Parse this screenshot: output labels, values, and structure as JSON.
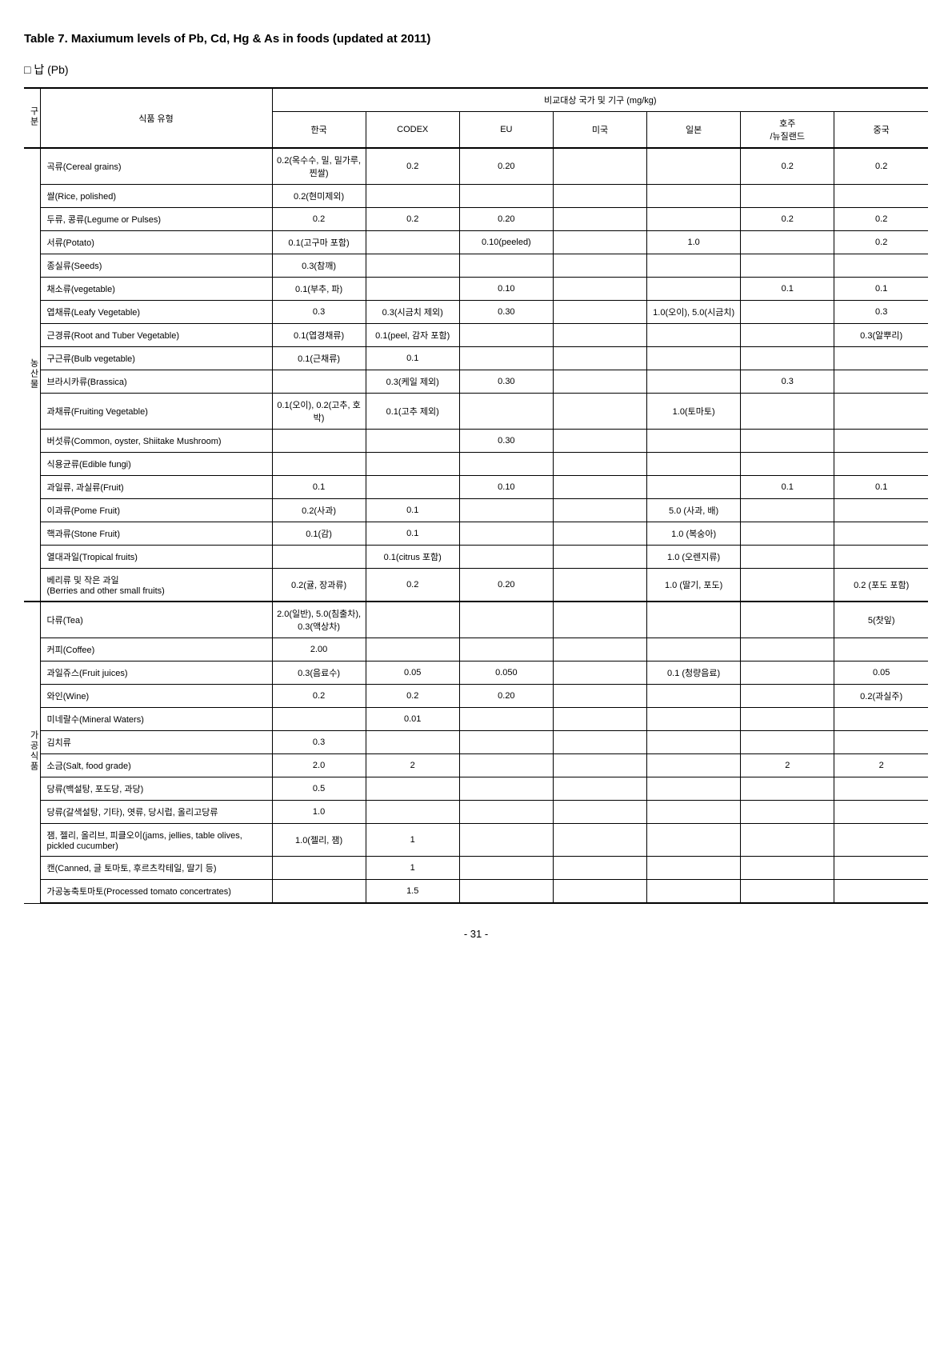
{
  "page": {
    "title": "Table 7. Maxiumum levels of Pb, Cd, Hg & As in foods (updated at 2011)",
    "subtitle": "□ 납 (Pb)",
    "pagenum": "- 31 -"
  },
  "header": {
    "category": "구분",
    "foodType": "식품 유형",
    "compare": "비교대상 국가 및 기구 (mg/kg)",
    "korea": "한국",
    "codex": "CODEX",
    "eu": "EU",
    "usa": "미국",
    "japan": "일본",
    "ausnz": "호주\n/뉴질랜드",
    "china": "중국"
  },
  "cats": {
    "plant": "농산물",
    "processed": "가공식품"
  },
  "rows": [
    {
      "cat": "plant",
      "label": "곡류(Cereal grains)",
      "kr": "0.2(옥수수, 밀, 밀가루, 찐쌀)",
      "codex": "0.2",
      "eu": "0.20",
      "us": "",
      "jp": "",
      "au": "0.2",
      "cn": "0.2"
    },
    {
      "cat": "plant",
      "label": "쌀(Rice, polished)",
      "kr": "0.2(현미제외)",
      "codex": "",
      "eu": "",
      "us": "",
      "jp": "",
      "au": "",
      "cn": ""
    },
    {
      "cat": "plant",
      "label": "두류, 콩류(Legume or Pulses)",
      "kr": "0.2",
      "codex": "0.2",
      "eu": "0.20",
      "us": "",
      "jp": "",
      "au": "0.2",
      "cn": "0.2"
    },
    {
      "cat": "plant",
      "label": "서류(Potato)",
      "kr": "0.1(고구마 포함)",
      "codex": "",
      "eu": "0.10(peeled)",
      "us": "",
      "jp": "1.0",
      "au": "",
      "cn": "0.2"
    },
    {
      "cat": "plant",
      "label": "종실류(Seeds)",
      "kr": "0.3(참깨)",
      "codex": "",
      "eu": "",
      "us": "",
      "jp": "",
      "au": "",
      "cn": ""
    },
    {
      "cat": "plant",
      "label": "채소류(vegetable)",
      "kr": "0.1(부추, 파)",
      "codex": "",
      "eu": "0.10",
      "us": "",
      "jp": "",
      "au": "0.1",
      "cn": "0.1"
    },
    {
      "cat": "plant",
      "label": "엽채류(Leafy Vegetable)",
      "kr": "0.3",
      "codex": "0.3(시금치 제외)",
      "eu": "0.30",
      "us": "",
      "jp": "1.0(오이), 5.0(시금치)",
      "au": "",
      "cn": "0.3"
    },
    {
      "cat": "plant",
      "label": "근경류(Root and Tuber Vegetable)",
      "kr": "0.1(엽경채류)",
      "codex": "0.1(peel, 감자 포함)",
      "eu": "",
      "us": "",
      "jp": "",
      "au": "",
      "cn": "0.3(알뿌리)"
    },
    {
      "cat": "plant",
      "label": "구근류(Bulb vegetable)",
      "kr": "0.1(근채류)",
      "codex": "0.1",
      "eu": "",
      "us": "",
      "jp": "",
      "au": "",
      "cn": ""
    },
    {
      "cat": "plant",
      "label": "브라시카류(Brassica)",
      "kr": "",
      "codex": "0.3(케일 제외)",
      "eu": "0.30",
      "us": "",
      "jp": "",
      "au": "0.3",
      "cn": ""
    },
    {
      "cat": "plant",
      "label": "과채류(Fruiting Vegetable)",
      "kr": "0.1(오이), 0.2(고추, 호박)",
      "codex": "0.1(고추 제외)",
      "eu": "",
      "us": "",
      "jp": "1.0(토마토)",
      "au": "",
      "cn": ""
    },
    {
      "cat": "plant",
      "label": "버섯류(Common, oyster, Shiitake Mushroom)",
      "kr": "",
      "codex": "",
      "eu": "0.30",
      "us": "",
      "jp": "",
      "au": "",
      "cn": ""
    },
    {
      "cat": "plant",
      "label": "식용균류(Edible fungi)",
      "kr": "",
      "codex": "",
      "eu": "",
      "us": "",
      "jp": "",
      "au": "",
      "cn": ""
    },
    {
      "cat": "plant",
      "label": "과일류, 과실류(Fruit)",
      "kr": "0.1",
      "codex": "",
      "eu": "0.10",
      "us": "",
      "jp": "",
      "au": "0.1",
      "cn": "0.1"
    },
    {
      "cat": "plant",
      "label": "이과류(Pome Fruit)",
      "kr": "0.2(사과)",
      "codex": "0.1",
      "eu": "",
      "us": "",
      "jp": "5.0 (사과, 배)",
      "au": "",
      "cn": ""
    },
    {
      "cat": "plant",
      "label": "핵과류(Stone Fruit)",
      "kr": "0.1(감)",
      "codex": "0.1",
      "eu": "",
      "us": "",
      "jp": "1.0 (복숭아)",
      "au": "",
      "cn": ""
    },
    {
      "cat": "plant",
      "label": "열대과일(Tropical fruits)",
      "kr": "",
      "codex": "0.1(citrus 포함)",
      "eu": "",
      "us": "",
      "jp": "1.0 (오렌지류)",
      "au": "",
      "cn": ""
    },
    {
      "cat": "plant",
      "label": "베리류 및 작은 과일\n(Berries and other small fruits)",
      "kr": "0.2(귤, 장과류)",
      "codex": "0.2",
      "eu": "0.20",
      "us": "",
      "jp": "1.0 (딸기, 포도)",
      "au": "",
      "cn": "0.2 (포도 포함)"
    },
    {
      "cat": "processed",
      "label": "다류(Tea)",
      "kr": "2.0(일반), 5.0(침출차), 0.3(액상차)",
      "codex": "",
      "eu": "",
      "us": "",
      "jp": "",
      "au": "",
      "cn": "5(찻잎)"
    },
    {
      "cat": "processed",
      "label": "커피(Coffee)",
      "kr": "2.00",
      "codex": "",
      "eu": "",
      "us": "",
      "jp": "",
      "au": "",
      "cn": ""
    },
    {
      "cat": "processed",
      "label": "과일쥬스(Fruit juices)",
      "kr": "0.3(음료수)",
      "codex": "0.05",
      "eu": "0.050",
      "us": "",
      "jp": "0.1 (청량음료)",
      "au": "",
      "cn": "0.05"
    },
    {
      "cat": "processed",
      "label": "와인(Wine)",
      "kr": "0.2",
      "codex": "0.2",
      "eu": "0.20",
      "us": "",
      "jp": "",
      "au": "",
      "cn": "0.2(과실주)"
    },
    {
      "cat": "processed",
      "label": "미네랄수(Mineral Waters)",
      "kr": "",
      "codex": "0.01",
      "eu": "",
      "us": "",
      "jp": "",
      "au": "",
      "cn": ""
    },
    {
      "cat": "processed",
      "label": "김치류",
      "kr": "0.3",
      "codex": "",
      "eu": "",
      "us": "",
      "jp": "",
      "au": "",
      "cn": ""
    },
    {
      "cat": "processed",
      "label": "소금(Salt, food grade)",
      "kr": "2.0",
      "codex": "2",
      "eu": "",
      "us": "",
      "jp": "",
      "au": "2",
      "cn": "2"
    },
    {
      "cat": "processed",
      "label": "당류(백설탕, 포도당, 과당)",
      "kr": "0.5",
      "codex": "",
      "eu": "",
      "us": "",
      "jp": "",
      "au": "",
      "cn": ""
    },
    {
      "cat": "processed",
      "label": "당류(갈색설탕, 기타), 엿류, 당시럽, 올리고당류",
      "kr": "1.0",
      "codex": "",
      "eu": "",
      "us": "",
      "jp": "",
      "au": "",
      "cn": ""
    },
    {
      "cat": "processed",
      "label": "잼, 젤리, 올리브, 피클오이(jams, jellies, table olives, pickled cucumber)",
      "kr": "1.0(젤리, 잼)",
      "codex": "1",
      "eu": "",
      "us": "",
      "jp": "",
      "au": "",
      "cn": ""
    },
    {
      "cat": "processed",
      "label": "캔(Canned, 글 토마토, 후르츠칵테일, 딸기 등)",
      "kr": "",
      "codex": "1",
      "eu": "",
      "us": "",
      "jp": "",
      "au": "",
      "cn": ""
    },
    {
      "cat": "processed",
      "label": "가공농축토마토(Processed tomato concertrates)",
      "kr": "",
      "codex": "1.5",
      "eu": "",
      "us": "",
      "jp": "",
      "au": "",
      "cn": ""
    }
  ],
  "layout": {
    "plantCount": 18,
    "processedCount": 12
  }
}
